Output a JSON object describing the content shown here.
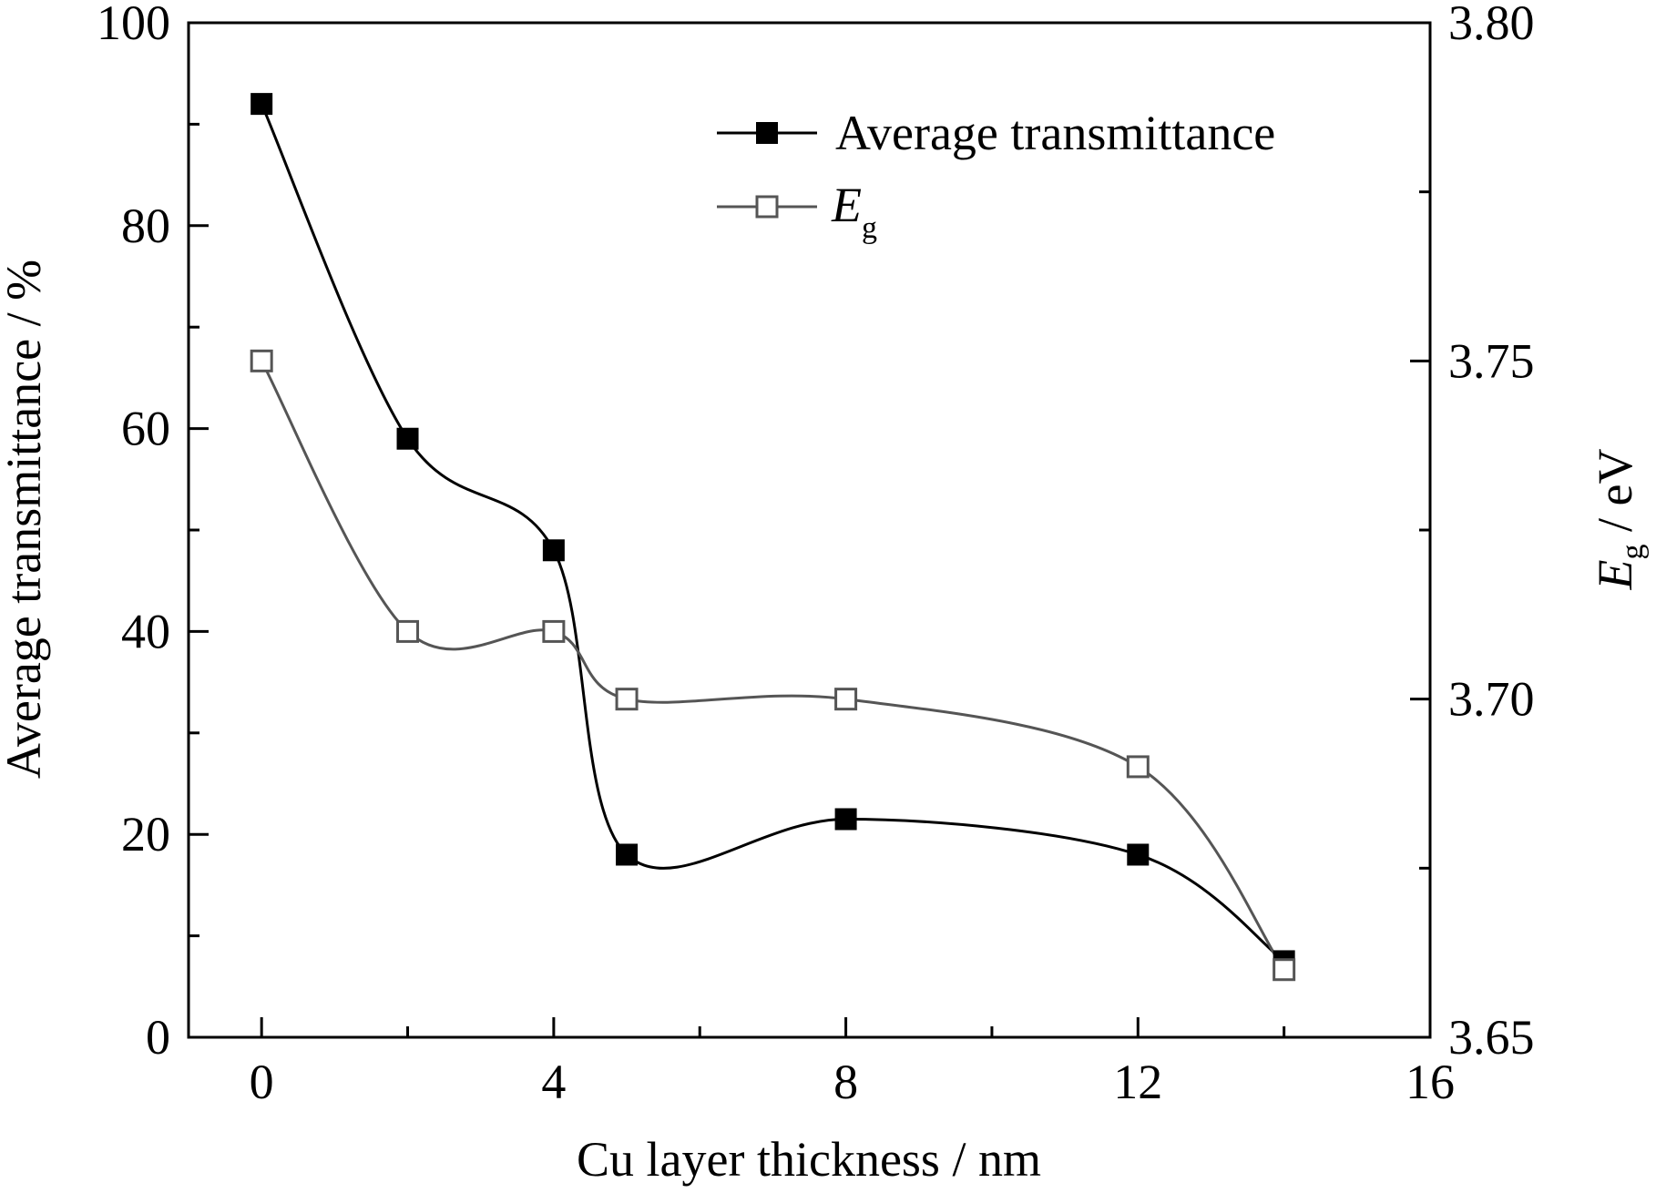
{
  "chart_data": {
    "type": "scatter",
    "xlabel": "Cu layer thickness / nm",
    "ylabel": "Average transmittance / %",
    "y2label": {
      "main": "E",
      "sub": "g",
      "unit": " / eV"
    },
    "xlim": [
      -1,
      16
    ],
    "ylim": [
      0,
      100
    ],
    "y2lim": [
      3.65,
      3.8
    ],
    "x_ticks": [
      "0",
      "4",
      "8",
      "12",
      "16"
    ],
    "x_tick_values": [
      0,
      4,
      8,
      12,
      16
    ],
    "y_ticks": [
      "0",
      "20",
      "40",
      "60",
      "80",
      "100"
    ],
    "y_tick_values": [
      0,
      20,
      40,
      60,
      80,
      100
    ],
    "y2_ticks": [
      "3.65",
      "3.70",
      "3.75",
      "3.80"
    ],
    "y2_tick_values": [
      3.65,
      3.7,
      3.75,
      3.8
    ],
    "grid": false,
    "legend_position": "top-right",
    "series": [
      {
        "name": "Average transmittance",
        "axis": "left",
        "marker": "filled-square",
        "color": "#000000",
        "line": "smooth-fit",
        "x": [
          0,
          2,
          4,
          5,
          8,
          12,
          14
        ],
        "y": [
          92,
          59,
          48,
          18,
          21.5,
          18,
          7.5
        ]
      },
      {
        "name_main": "E",
        "name_sub": "g",
        "axis": "right",
        "marker": "hollow-square",
        "color": "#555555",
        "line": "smooth-fit",
        "x": [
          0,
          2,
          4,
          5,
          8,
          12,
          14
        ],
        "y": [
          3.75,
          3.71,
          3.71,
          3.7,
          3.7,
          3.69,
          3.66
        ]
      }
    ]
  }
}
